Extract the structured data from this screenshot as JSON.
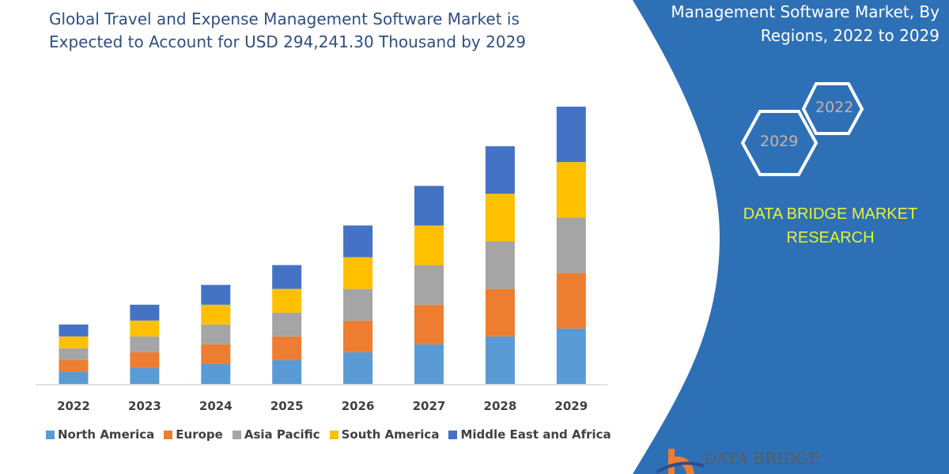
{
  "title_lines": [
    "Global Travel and Expense Management Software Market is",
    "Expected to Account for USD 294,241.30 Thousand by 2029"
  ],
  "side_panel": {
    "title_lines": [
      "Management Software Market, By",
      "Regions, 2022 to 2029"
    ],
    "hex_years": [
      "2022",
      "2029"
    ],
    "brand_lines": [
      "DATA BRIDGE MARKET",
      "RESEARCH"
    ],
    "logo_text": "DATA BRIDGE",
    "panel_color": "#2e70b6",
    "brand_color": "#e6f235"
  },
  "chart_data": {
    "type": "bar",
    "stacked": true,
    "categories": [
      "2022",
      "2023",
      "2024",
      "2025",
      "2026",
      "2027",
      "2028",
      "2029"
    ],
    "series": [
      {
        "name": "North America",
        "color": "#5b9bd5",
        "values": [
          15,
          20,
          25,
          30,
          40,
          50,
          60,
          70
        ]
      },
      {
        "name": "Europe",
        "color": "#ed7d31",
        "values": [
          15,
          20,
          25,
          30,
          40,
          50,
          60,
          70
        ]
      },
      {
        "name": "Asia Pacific",
        "color": "#a5a5a5",
        "values": [
          15,
          20,
          25,
          30,
          40,
          50,
          60,
          70
        ]
      },
      {
        "name": "South America",
        "color": "#ffc000",
        "values": [
          15,
          20,
          25,
          30,
          40,
          50,
          60,
          70
        ]
      },
      {
        "name": "Middle East and Africa",
        "color": "#4472c4",
        "values": [
          15,
          20,
          25,
          30,
          40,
          50,
          60,
          70
        ]
      }
    ],
    "ylim": [
      0,
      350
    ],
    "grid": false,
    "y_axis_shown": false,
    "legend_position": "bottom"
  }
}
